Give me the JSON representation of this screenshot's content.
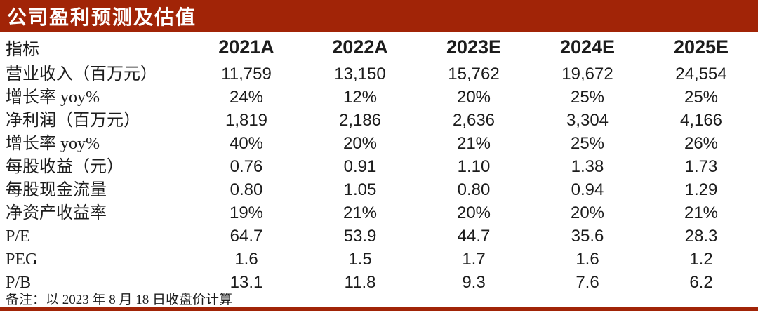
{
  "title": "公司盈利预测及估值",
  "accent_color": "#A12407",
  "table": {
    "header": [
      "指标",
      "2021A",
      "2022A",
      "2023E",
      "2024E",
      "2025E"
    ],
    "rows": [
      {
        "label": "营业收入（百万元）",
        "values": [
          "11,759",
          "13,150",
          "15,762",
          "19,672",
          "24,554"
        ]
      },
      {
        "label": "增长率 yoy%",
        "values": [
          "24%",
          "12%",
          "20%",
          "25%",
          "25%"
        ]
      },
      {
        "label": "净利润（百万元）",
        "values": [
          "1,819",
          "2,186",
          "2,636",
          "3,304",
          "4,166"
        ]
      },
      {
        "label": "增长率 yoy%",
        "values": [
          "40%",
          "20%",
          "21%",
          "25%",
          "26%"
        ]
      },
      {
        "label": "每股收益（元）",
        "values": [
          "0.76",
          "0.91",
          "1.10",
          "1.38",
          "1.73"
        ]
      },
      {
        "label": "每股现金流量",
        "values": [
          "0.80",
          "1.05",
          "0.80",
          "0.94",
          "1.29"
        ]
      },
      {
        "label": "净资产收益率",
        "values": [
          "19%",
          "21%",
          "20%",
          "20%",
          "21%"
        ]
      },
      {
        "label": "P/E",
        "values": [
          "64.7",
          "53.9",
          "44.7",
          "35.6",
          "28.3"
        ]
      },
      {
        "label": "PEG",
        "values": [
          "1.6",
          "1.5",
          "1.7",
          "1.6",
          "1.2"
        ]
      },
      {
        "label": "P/B",
        "values": [
          "13.1",
          "11.8",
          "9.3",
          "7.6",
          "6.2"
        ]
      }
    ]
  },
  "footnote": "备注：以 2023 年 8 月 18 日收盘价计算"
}
